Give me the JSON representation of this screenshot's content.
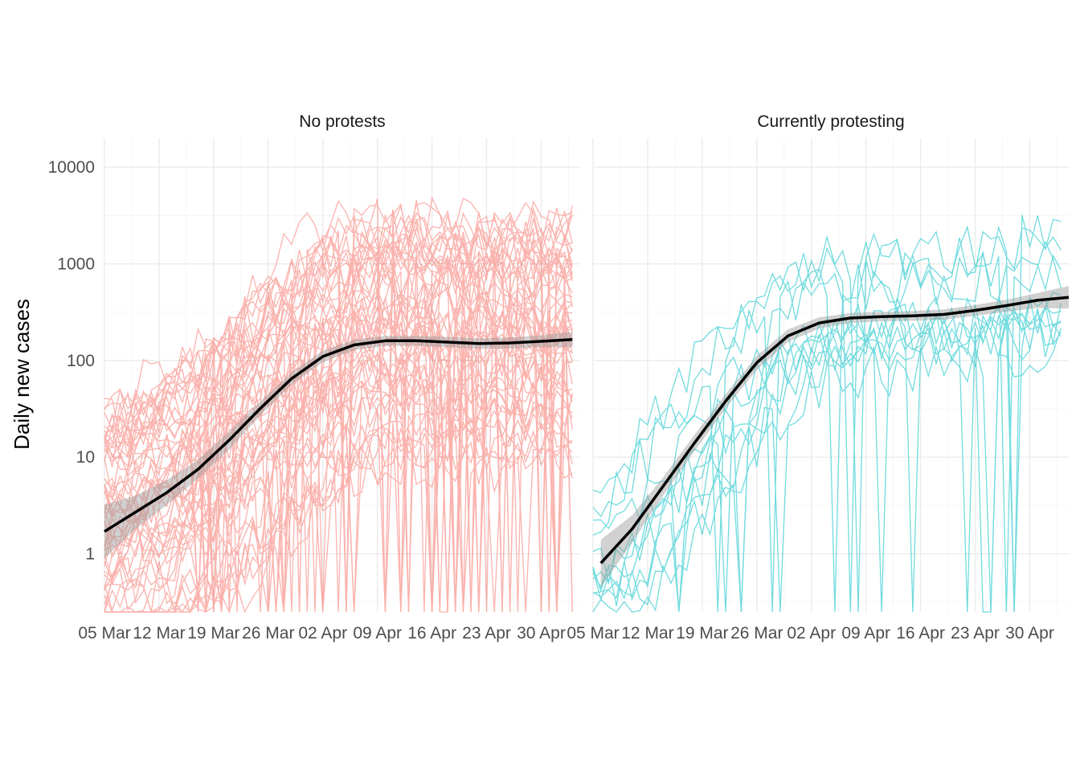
{
  "chart_data": {
    "type": "line",
    "ylabel": "Daily new cases",
    "xlabel": "",
    "y_scale": "log10",
    "ylim": [
      0.25,
      20000
    ],
    "y_ticks": [
      1,
      10,
      100,
      1000,
      10000
    ],
    "y_tick_labels": [
      "1",
      "10",
      "100",
      "1000",
      "10000"
    ],
    "x_ticks": [
      "2020-03-05",
      "2020-03-12",
      "2020-03-19",
      "2020-03-26",
      "2020-04-02",
      "2020-04-09",
      "2020-04-16",
      "2020-04-23",
      "2020-04-30"
    ],
    "x_tick_labels": [
      "05 Mar",
      "12 Mar",
      "19 Mar",
      "26 Mar",
      "02 Apr",
      "09 Apr",
      "16 Apr",
      "23 Apr",
      "30 Apr"
    ],
    "xlim": [
      "2020-03-05",
      "2020-05-05"
    ],
    "grid": true,
    "legend": "none",
    "panels": [
      {
        "title": "No protests",
        "color": "#F8766D",
        "smooth_color": "#000000",
        "smooth": {
          "x": [
            "2020-03-05",
            "2020-03-09",
            "2020-03-13",
            "2020-03-17",
            "2020-03-21",
            "2020-03-25",
            "2020-03-29",
            "2020-04-02",
            "2020-04-06",
            "2020-04-10",
            "2020-04-14",
            "2020-04-18",
            "2020-04-22",
            "2020-04-26",
            "2020-04-30",
            "2020-05-04"
          ],
          "y": [
            1.7,
            2.7,
            4.3,
            7.5,
            15,
            32,
            65,
            110,
            145,
            160,
            160,
            155,
            150,
            152,
            158,
            165
          ],
          "ci_low": [
            0.9,
            1.8,
            3.2,
            6,
            12,
            27,
            56,
            96,
            128,
            142,
            142,
            137,
            132,
            133,
            137,
            138
          ],
          "ci_high": [
            3.2,
            4,
            5.8,
            9.4,
            18.5,
            38,
            75,
            126,
            164,
            180,
            180,
            175,
            170,
            173,
            182,
            198
          ]
        }
      },
      {
        "title": "Currently protesting",
        "color": "#00BFC4",
        "smooth_color": "#000000",
        "smooth": {
          "x": [
            "2020-03-06",
            "2020-03-10",
            "2020-03-14",
            "2020-03-18",
            "2020-03-22",
            "2020-03-26",
            "2020-03-30",
            "2020-04-03",
            "2020-04-07",
            "2020-04-11",
            "2020-04-15",
            "2020-04-19",
            "2020-04-23",
            "2020-04-27",
            "2020-05-01",
            "2020-05-05"
          ],
          "y": [
            0.8,
            1.8,
            5,
            14,
            38,
            95,
            180,
            245,
            275,
            285,
            290,
            300,
            330,
            370,
            420,
            450
          ],
          "ci_low": [
            0.45,
            1.3,
            4,
            11.5,
            32,
            80,
            155,
            215,
            245,
            255,
            258,
            265,
            290,
            320,
            350,
            345
          ],
          "ci_high": [
            1.4,
            2.5,
            6.2,
            17,
            45,
            112,
            210,
            280,
            310,
            318,
            325,
            338,
            375,
            425,
            500,
            590
          ]
        }
      }
    ]
  }
}
